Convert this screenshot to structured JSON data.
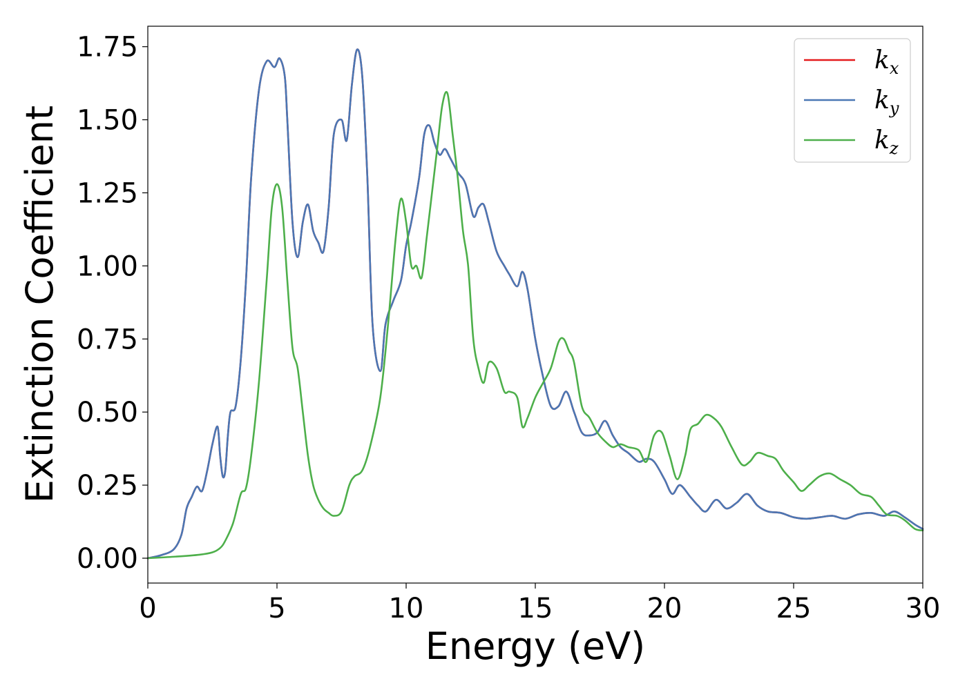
{
  "chart_data": {
    "type": "line",
    "xlabel": "Energy (eV)",
    "ylabel": "Extinction Coefficient",
    "xlim": [
      0,
      30
    ],
    "ylim": [
      -0.085,
      1.82
    ],
    "xticks": [
      0,
      5,
      10,
      15,
      20,
      25,
      30
    ],
    "xtick_labels": [
      "0",
      "5",
      "10",
      "15",
      "20",
      "25",
      "30"
    ],
    "yticks": [
      0,
      0.25,
      0.5,
      0.75,
      1.0,
      1.25,
      1.5,
      1.75
    ],
    "ytick_labels": [
      "0.00",
      "0.25",
      "0.50",
      "0.75",
      "1.00",
      "1.25",
      "1.50",
      "1.75"
    ],
    "grid": false,
    "legend_position": "top-right",
    "series": [
      {
        "name": "k_x",
        "legend_base": "k",
        "legend_sub": "x",
        "color": "#e41a1c",
        "x": [
          0,
          0.5,
          1.0,
          1.3,
          1.5,
          1.7,
          1.9,
          2.1,
          2.3,
          2.5,
          2.7,
          2.8,
          2.9,
          3.0,
          3.1,
          3.2,
          3.4,
          3.6,
          3.8,
          4.0,
          4.3,
          4.6,
          4.9,
          5.1,
          5.3,
          5.4,
          5.6,
          5.8,
          6.0,
          6.2,
          6.4,
          6.6,
          6.8,
          7.0,
          7.2,
          7.5,
          7.7,
          7.9,
          8.1,
          8.3,
          8.5,
          8.7,
          9.0,
          9.2,
          9.5,
          9.8,
          10.0,
          10.2,
          10.5,
          10.7,
          10.9,
          11.1,
          11.3,
          11.5,
          11.7,
          12.0,
          12.3,
          12.6,
          12.8,
          13.0,
          13.2,
          13.5,
          13.8,
          14.0,
          14.3,
          14.5,
          14.7,
          15.0,
          15.3,
          15.6,
          15.9,
          16.2,
          16.5,
          16.8,
          17.1,
          17.4,
          17.7,
          18.0,
          18.3,
          18.6,
          19.0,
          19.3,
          19.6,
          20.0,
          20.3,
          20.6,
          21.0,
          21.3,
          21.6,
          22.0,
          22.4,
          22.8,
          23.2,
          23.6,
          24.0,
          24.5,
          25.0,
          25.5,
          26.0,
          26.5,
          27.0,
          27.5,
          28.0,
          28.5,
          28.9,
          29.3,
          29.7,
          30.0
        ],
        "y": [
          0.0,
          0.01,
          0.03,
          0.08,
          0.17,
          0.21,
          0.245,
          0.23,
          0.3,
          0.39,
          0.45,
          0.35,
          0.28,
          0.3,
          0.42,
          0.5,
          0.52,
          0.68,
          0.95,
          1.3,
          1.6,
          1.7,
          1.68,
          1.71,
          1.65,
          1.5,
          1.15,
          1.03,
          1.15,
          1.21,
          1.12,
          1.08,
          1.05,
          1.2,
          1.45,
          1.5,
          1.43,
          1.62,
          1.74,
          1.65,
          1.3,
          0.8,
          0.64,
          0.8,
          0.88,
          0.95,
          1.07,
          1.15,
          1.3,
          1.45,
          1.48,
          1.42,
          1.38,
          1.4,
          1.37,
          1.32,
          1.28,
          1.17,
          1.2,
          1.21,
          1.15,
          1.05,
          1.0,
          0.97,
          0.93,
          0.98,
          0.92,
          0.75,
          0.62,
          0.52,
          0.52,
          0.57,
          0.5,
          0.43,
          0.42,
          0.43,
          0.47,
          0.42,
          0.38,
          0.36,
          0.33,
          0.34,
          0.33,
          0.27,
          0.22,
          0.25,
          0.21,
          0.18,
          0.16,
          0.2,
          0.17,
          0.19,
          0.22,
          0.18,
          0.16,
          0.155,
          0.14,
          0.135,
          0.14,
          0.145,
          0.135,
          0.15,
          0.155,
          0.145,
          0.16,
          0.14,
          0.115,
          0.1
        ]
      },
      {
        "name": "k_y",
        "legend_base": "k",
        "legend_sub": "y",
        "color": "#4a77b4",
        "x": [
          0,
          0.5,
          1.0,
          1.3,
          1.5,
          1.7,
          1.9,
          2.1,
          2.3,
          2.5,
          2.7,
          2.8,
          2.9,
          3.0,
          3.1,
          3.2,
          3.4,
          3.6,
          3.8,
          4.0,
          4.3,
          4.6,
          4.9,
          5.1,
          5.3,
          5.4,
          5.6,
          5.8,
          6.0,
          6.2,
          6.4,
          6.6,
          6.8,
          7.0,
          7.2,
          7.5,
          7.7,
          7.9,
          8.1,
          8.3,
          8.5,
          8.7,
          9.0,
          9.2,
          9.5,
          9.8,
          10.0,
          10.2,
          10.5,
          10.7,
          10.9,
          11.1,
          11.3,
          11.5,
          11.7,
          12.0,
          12.3,
          12.6,
          12.8,
          13.0,
          13.2,
          13.5,
          13.8,
          14.0,
          14.3,
          14.5,
          14.7,
          15.0,
          15.3,
          15.6,
          15.9,
          16.2,
          16.5,
          16.8,
          17.1,
          17.4,
          17.7,
          18.0,
          18.3,
          18.6,
          19.0,
          19.3,
          19.6,
          20.0,
          20.3,
          20.6,
          21.0,
          21.3,
          21.6,
          22.0,
          22.4,
          22.8,
          23.2,
          23.6,
          24.0,
          24.5,
          25.0,
          25.5,
          26.0,
          26.5,
          27.0,
          27.5,
          28.0,
          28.5,
          28.9,
          29.3,
          29.7,
          30.0
        ],
        "y": [
          0.0,
          0.01,
          0.03,
          0.08,
          0.17,
          0.21,
          0.245,
          0.23,
          0.3,
          0.39,
          0.45,
          0.35,
          0.28,
          0.3,
          0.42,
          0.5,
          0.52,
          0.68,
          0.95,
          1.3,
          1.6,
          1.7,
          1.68,
          1.71,
          1.65,
          1.5,
          1.15,
          1.03,
          1.15,
          1.21,
          1.12,
          1.08,
          1.05,
          1.2,
          1.45,
          1.5,
          1.43,
          1.62,
          1.74,
          1.65,
          1.3,
          0.8,
          0.64,
          0.8,
          0.88,
          0.95,
          1.07,
          1.15,
          1.3,
          1.45,
          1.48,
          1.42,
          1.38,
          1.4,
          1.37,
          1.32,
          1.28,
          1.17,
          1.2,
          1.21,
          1.15,
          1.05,
          1.0,
          0.97,
          0.93,
          0.98,
          0.92,
          0.75,
          0.62,
          0.52,
          0.52,
          0.57,
          0.5,
          0.43,
          0.42,
          0.43,
          0.47,
          0.42,
          0.38,
          0.36,
          0.33,
          0.34,
          0.33,
          0.27,
          0.22,
          0.25,
          0.21,
          0.18,
          0.16,
          0.2,
          0.17,
          0.19,
          0.22,
          0.18,
          0.16,
          0.155,
          0.14,
          0.135,
          0.14,
          0.145,
          0.135,
          0.15,
          0.155,
          0.145,
          0.16,
          0.14,
          0.115,
          0.1
        ]
      },
      {
        "name": "k_z",
        "legend_base": "k",
        "legend_sub": "z",
        "color": "#4daf4a",
        "x": [
          0,
          1.0,
          2.0,
          2.5,
          2.8,
          3.0,
          3.3,
          3.6,
          3.8,
          4.0,
          4.3,
          4.6,
          4.8,
          5.0,
          5.2,
          5.4,
          5.6,
          5.8,
          6.0,
          6.2,
          6.4,
          6.6,
          6.8,
          7.0,
          7.2,
          7.5,
          7.8,
          8.0,
          8.3,
          8.6,
          9.0,
          9.3,
          9.6,
          9.8,
          10.0,
          10.2,
          10.4,
          10.6,
          10.8,
          11.0,
          11.2,
          11.4,
          11.6,
          11.8,
          12.0,
          12.2,
          12.4,
          12.6,
          12.8,
          13.0,
          13.2,
          13.5,
          13.8,
          14.0,
          14.3,
          14.5,
          14.7,
          15.0,
          15.3,
          15.6,
          15.9,
          16.1,
          16.3,
          16.5,
          16.8,
          17.1,
          17.4,
          17.7,
          18.0,
          18.3,
          18.6,
          19.0,
          19.3,
          19.6,
          19.9,
          20.2,
          20.5,
          20.8,
          21.0,
          21.3,
          21.6,
          21.9,
          22.2,
          22.6,
          23.0,
          23.3,
          23.6,
          24.0,
          24.3,
          24.6,
          25.0,
          25.3,
          25.6,
          26.0,
          26.4,
          26.8,
          27.2,
          27.6,
          28.0,
          28.3,
          28.6,
          29.0,
          29.3,
          29.7,
          30.0
        ],
        "y": [
          0.0,
          0.005,
          0.012,
          0.02,
          0.035,
          0.06,
          0.12,
          0.22,
          0.24,
          0.35,
          0.6,
          0.95,
          1.2,
          1.28,
          1.2,
          0.95,
          0.72,
          0.65,
          0.5,
          0.35,
          0.25,
          0.2,
          0.17,
          0.155,
          0.145,
          0.16,
          0.25,
          0.28,
          0.3,
          0.38,
          0.55,
          0.8,
          1.1,
          1.23,
          1.15,
          1.0,
          1.0,
          0.96,
          1.1,
          1.25,
          1.4,
          1.55,
          1.59,
          1.45,
          1.3,
          1.12,
          1.0,
          0.75,
          0.65,
          0.6,
          0.67,
          0.65,
          0.57,
          0.57,
          0.55,
          0.45,
          0.48,
          0.55,
          0.6,
          0.65,
          0.74,
          0.75,
          0.71,
          0.67,
          0.52,
          0.48,
          0.43,
          0.4,
          0.38,
          0.39,
          0.38,
          0.37,
          0.33,
          0.42,
          0.43,
          0.35,
          0.27,
          0.35,
          0.44,
          0.46,
          0.49,
          0.48,
          0.45,
          0.38,
          0.32,
          0.33,
          0.36,
          0.35,
          0.34,
          0.3,
          0.26,
          0.23,
          0.25,
          0.28,
          0.29,
          0.27,
          0.25,
          0.22,
          0.21,
          0.18,
          0.15,
          0.145,
          0.13,
          0.1,
          0.095
        ]
      }
    ]
  }
}
